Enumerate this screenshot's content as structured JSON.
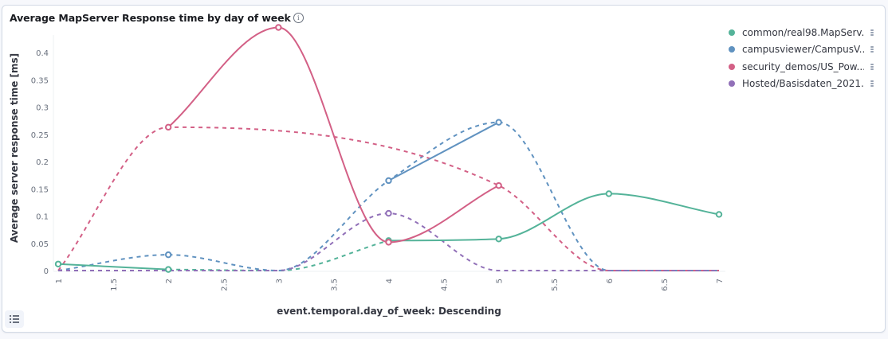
{
  "panel": {
    "title": "Average MapServer Response time by day of week",
    "info_icon": "info-icon",
    "legend_toggle_icon": "list-icon"
  },
  "chart_data": {
    "type": "line",
    "title": "Average MapServer Response time by day of week",
    "xlabel": "event.temporal.day_of_week: Descending",
    "ylabel": "Average server response time [ms]",
    "xlim": [
      1,
      7
    ],
    "ylim": [
      0,
      0.45
    ],
    "x_ticks": [
      "1",
      "1.5",
      "2",
      "2.5",
      "3",
      "3.5",
      "4",
      "4.5",
      "5",
      "5.5",
      "6",
      "6.5",
      "7"
    ],
    "y_ticks": [
      "0",
      "0.05",
      "0.1",
      "0.15",
      "0.2",
      "0.25",
      "0.3",
      "0.35",
      "0.4"
    ],
    "grid": false,
    "legend_position": "right",
    "interpolation": "monotone curve; dashed segments fill gaps (missing buckets treated as 0)",
    "series": [
      {
        "name": "common/real98.MapServ...",
        "color": "#54b399",
        "points": [
          [
            1,
            0.012
          ],
          [
            2,
            0.002
          ],
          [
            4,
            0.055
          ],
          [
            5,
            0.058
          ],
          [
            6,
            0.141
          ],
          [
            7,
            0.103
          ]
        ],
        "gap_fill": [
          [
            2,
            0.002
          ],
          [
            3,
            0.0
          ],
          [
            4,
            0.055
          ]
        ]
      },
      {
        "name": "campusviewer/CampusV...",
        "color": "#6092c0",
        "points": [
          [
            2,
            0.029
          ],
          [
            4,
            0.165
          ],
          [
            5,
            0.272
          ]
        ],
        "gap_fill": [
          [
            1,
            0.0
          ],
          [
            2,
            0.029
          ],
          [
            3,
            0.0
          ],
          [
            4,
            0.165
          ],
          [
            5,
            0.272
          ],
          [
            6,
            0.0
          ],
          [
            7,
            0.0
          ]
        ]
      },
      {
        "name": "security_demos/US_Pow...",
        "color": "#d36086",
        "points": [
          [
            2,
            0.263
          ],
          [
            3,
            0.446
          ],
          [
            4,
            0.052
          ],
          [
            5,
            0.156
          ]
        ],
        "gap_fill": [
          [
            1,
            0.0
          ],
          [
            2,
            0.263
          ],
          [
            5,
            0.156
          ],
          [
            6,
            0.0
          ],
          [
            7,
            0.0
          ]
        ]
      },
      {
        "name": "Hosted/Basisdaten_2021...",
        "color": "#9170b8",
        "points": [
          [
            4,
            0.105
          ]
        ],
        "gap_fill": [
          [
            1,
            0.0
          ],
          [
            2,
            0.0
          ],
          [
            3,
            0.0
          ],
          [
            4,
            0.105
          ],
          [
            5,
            0.0
          ],
          [
            6,
            0.0
          ],
          [
            7,
            0.0
          ]
        ]
      }
    ]
  }
}
